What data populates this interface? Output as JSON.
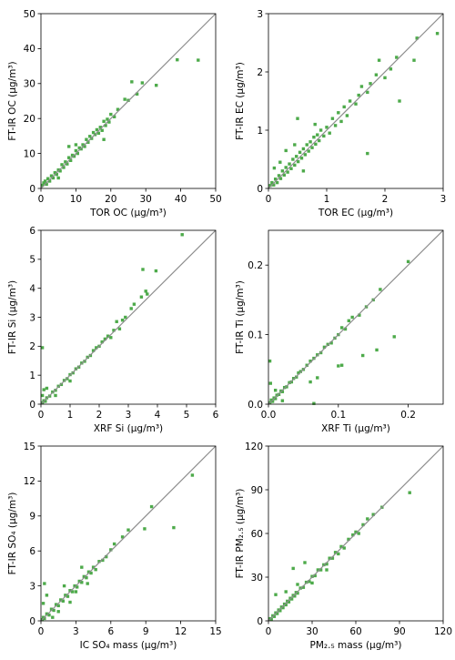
{
  "chart_data": [
    {
      "type": "scatter",
      "xlabel": "TOR OC (µg/m³)",
      "ylabel": "FT-IR OC (µg/m³)",
      "xlim": [
        0,
        50
      ],
      "ylim": [
        0,
        50
      ],
      "xticks": [
        "0",
        "10",
        "20",
        "30",
        "40",
        "50"
      ],
      "yticks": [
        "0",
        "10",
        "20",
        "30",
        "40",
        "50"
      ],
      "identity_line": true,
      "marker_color": "#4daa4a",
      "points": [
        [
          0.4,
          0.9
        ],
        [
          0.8,
          1.6
        ],
        [
          1.2,
          2.1
        ],
        [
          1.6,
          1.2
        ],
        [
          2.0,
          2.8
        ],
        [
          2.5,
          2.1
        ],
        [
          3.0,
          3.6
        ],
        [
          3.5,
          3.0
        ],
        [
          4.0,
          4.5
        ],
        [
          4.5,
          4.0
        ],
        [
          5.0,
          5.3
        ],
        [
          5.5,
          5.0
        ],
        [
          6.0,
          6.8
        ],
        [
          6.5,
          6.0
        ],
        [
          7.0,
          7.6
        ],
        [
          7.5,
          7.0
        ],
        [
          8.0,
          8.8
        ],
        [
          8.5,
          8.0
        ],
        [
          9.0,
          9.5
        ],
        [
          9.5,
          9.2
        ],
        [
          10.0,
          10.8
        ],
        [
          10.5,
          10.0
        ],
        [
          11.0,
          11.6
        ],
        [
          11.5,
          11.3
        ],
        [
          12.0,
          12.5
        ],
        [
          12.5,
          12.0
        ],
        [
          13.0,
          14.0
        ],
        [
          13.5,
          13.2
        ],
        [
          14.0,
          14.9
        ],
        [
          14.5,
          14.3
        ],
        [
          15.0,
          16.0
        ],
        [
          15.5,
          15.4
        ],
        [
          16.0,
          16.8
        ],
        [
          16.5,
          15.8
        ],
        [
          17.0,
          17.5
        ],
        [
          17.5,
          16.6
        ],
        [
          18.0,
          19.2
        ],
        [
          18.5,
          18.0
        ],
        [
          19.0,
          19.8
        ],
        [
          19.5,
          19.0
        ],
        [
          20.0,
          21.2
        ],
        [
          21.0,
          20.5
        ],
        [
          22.0,
          22.6
        ],
        [
          24.0,
          25.5
        ],
        [
          25.0,
          25.2
        ],
        [
          26.0,
          30.5
        ],
        [
          27.5,
          27.0
        ],
        [
          29.0,
          30.2
        ],
        [
          33.0,
          29.5
        ],
        [
          39.0,
          36.8
        ],
        [
          45.0,
          36.7
        ],
        [
          8.0,
          12.0
        ],
        [
          10.0,
          12.5
        ],
        [
          18.0,
          14.0
        ],
        [
          5.0,
          3.0
        ]
      ]
    },
    {
      "type": "scatter",
      "xlabel": "TOR EC (µg/m³)",
      "ylabel": "FT-IR EC (µg/m³)",
      "xlim": [
        0,
        3
      ],
      "ylim": [
        0,
        3
      ],
      "xticks": [
        "0",
        "1",
        "2",
        "3"
      ],
      "yticks": [
        "0",
        "1",
        "2",
        "3"
      ],
      "identity_line": true,
      "marker_color": "#4daa4a",
      "points": [
        [
          0.03,
          0.05
        ],
        [
          0.06,
          0.1
        ],
        [
          0.09,
          0.06
        ],
        [
          0.12,
          0.16
        ],
        [
          0.15,
          0.1
        ],
        [
          0.18,
          0.22
        ],
        [
          0.21,
          0.17
        ],
        [
          0.24,
          0.3
        ],
        [
          0.27,
          0.23
        ],
        [
          0.3,
          0.36
        ],
        [
          0.33,
          0.28
        ],
        [
          0.36,
          0.42
        ],
        [
          0.39,
          0.34
        ],
        [
          0.42,
          0.5
        ],
        [
          0.45,
          0.4
        ],
        [
          0.48,
          0.55
        ],
        [
          0.51,
          0.46
        ],
        [
          0.54,
          0.62
        ],
        [
          0.57,
          0.52
        ],
        [
          0.6,
          0.68
        ],
        [
          0.63,
          0.58
        ],
        [
          0.66,
          0.75
        ],
        [
          0.69,
          0.64
        ],
        [
          0.72,
          0.8
        ],
        [
          0.75,
          0.7
        ],
        [
          0.78,
          0.88
        ],
        [
          0.81,
          0.76
        ],
        [
          0.84,
          0.92
        ],
        [
          0.87,
          0.82
        ],
        [
          0.9,
          1.0
        ],
        [
          0.95,
          0.9
        ],
        [
          1.0,
          1.05
        ],
        [
          1.05,
          0.95
        ],
        [
          1.1,
          1.2
        ],
        [
          1.15,
          1.08
        ],
        [
          1.2,
          1.3
        ],
        [
          1.25,
          1.15
        ],
        [
          1.3,
          1.4
        ],
        [
          1.35,
          1.25
        ],
        [
          1.4,
          1.5
        ],
        [
          1.5,
          1.45
        ],
        [
          1.55,
          1.6
        ],
        [
          1.6,
          1.75
        ],
        [
          1.7,
          1.65
        ],
        [
          1.75,
          1.8
        ],
        [
          1.85,
          1.95
        ],
        [
          1.9,
          2.2
        ],
        [
          2.0,
          1.9
        ],
        [
          2.1,
          2.05
        ],
        [
          2.2,
          2.25
        ],
        [
          2.25,
          1.5
        ],
        [
          2.5,
          2.2
        ],
        [
          2.55,
          2.58
        ],
        [
          2.9,
          2.66
        ],
        [
          0.5,
          1.2
        ],
        [
          0.3,
          0.65
        ],
        [
          1.7,
          0.6
        ],
        [
          0.2,
          0.45
        ],
        [
          0.1,
          0.35
        ],
        [
          0.6,
          0.3
        ],
        [
          0.45,
          0.75
        ],
        [
          0.8,
          1.1
        ]
      ]
    },
    {
      "type": "scatter",
      "xlabel": "XRF Si (µg/m³)",
      "ylabel": "FT-IR Si (µg/m³)",
      "xlim": [
        0,
        6
      ],
      "ylim": [
        0,
        6
      ],
      "xticks": [
        "0",
        "1",
        "2",
        "3",
        "4",
        "5",
        "6"
      ],
      "yticks": [
        "0",
        "1",
        "2",
        "3",
        "4",
        "5",
        "6"
      ],
      "identity_line": true,
      "marker_color": "#4daa4a",
      "points": [
        [
          0.05,
          0.05
        ],
        [
          0.1,
          0.12
        ],
        [
          0.15,
          0.1
        ],
        [
          0.2,
          0.22
        ],
        [
          0.3,
          0.28
        ],
        [
          0.4,
          0.42
        ],
        [
          0.5,
          0.48
        ],
        [
          0.6,
          0.62
        ],
        [
          0.7,
          0.68
        ],
        [
          0.8,
          0.82
        ],
        [
          0.9,
          0.88
        ],
        [
          1.0,
          1.02
        ],
        [
          1.1,
          1.08
        ],
        [
          1.2,
          1.22
        ],
        [
          1.3,
          1.28
        ],
        [
          1.4,
          1.42
        ],
        [
          1.5,
          1.48
        ],
        [
          1.6,
          1.62
        ],
        [
          1.7,
          1.68
        ],
        [
          1.8,
          1.85
        ],
        [
          1.9,
          1.95
        ],
        [
          2.0,
          2.0
        ],
        [
          2.1,
          2.15
        ],
        [
          2.2,
          2.25
        ],
        [
          2.3,
          2.35
        ],
        [
          2.4,
          2.3
        ],
        [
          2.5,
          2.55
        ],
        [
          2.6,
          2.85
        ],
        [
          2.7,
          2.6
        ],
        [
          2.8,
          2.9
        ],
        [
          2.9,
          3.0
        ],
        [
          3.1,
          3.3
        ],
        [
          3.2,
          3.45
        ],
        [
          3.45,
          3.7
        ],
        [
          3.5,
          4.65
        ],
        [
          3.6,
          3.9
        ],
        [
          3.65,
          3.8
        ],
        [
          3.95,
          4.6
        ],
        [
          4.85,
          5.85
        ],
        [
          0.05,
          1.95
        ],
        [
          0.1,
          0.5
        ],
        [
          0.2,
          0.55
        ],
        [
          0.5,
          0.3
        ],
        [
          1.0,
          0.8
        ],
        [
          0.05,
          0.3
        ]
      ]
    },
    {
      "type": "scatter",
      "xlabel": "XRF Ti (µg/m³)",
      "ylabel": "FT-IR Ti (µg/m³)",
      "xlim": [
        0,
        0.25
      ],
      "ylim": [
        0,
        0.25
      ],
      "xticks": [
        "0.0",
        "0.1",
        "0.2"
      ],
      "yticks": [
        "0.0",
        "0.1",
        "0.2"
      ],
      "identity_line": true,
      "marker_color": "#4daa4a",
      "points": [
        [
          0.002,
          0.002
        ],
        [
          0.004,
          0.006
        ],
        [
          0.006,
          0.004
        ],
        [
          0.008,
          0.009
        ],
        [
          0.01,
          0.008
        ],
        [
          0.012,
          0.013
        ],
        [
          0.015,
          0.014
        ],
        [
          0.018,
          0.019
        ],
        [
          0.02,
          0.018
        ],
        [
          0.023,
          0.024
        ],
        [
          0.026,
          0.025
        ],
        [
          0.03,
          0.031
        ],
        [
          0.033,
          0.032
        ],
        [
          0.036,
          0.037
        ],
        [
          0.04,
          0.039
        ],
        [
          0.043,
          0.045
        ],
        [
          0.046,
          0.047
        ],
        [
          0.05,
          0.05
        ],
        [
          0.055,
          0.056
        ],
        [
          0.06,
          0.062
        ],
        [
          0.065,
          0.066
        ],
        [
          0.07,
          0.071
        ],
        [
          0.075,
          0.074
        ],
        [
          0.08,
          0.082
        ],
        [
          0.085,
          0.086
        ],
        [
          0.09,
          0.088
        ],
        [
          0.095,
          0.095
        ],
        [
          0.1,
          0.1
        ],
        [
          0.105,
          0.11
        ],
        [
          0.11,
          0.108
        ],
        [
          0.115,
          0.12
        ],
        [
          0.12,
          0.125
        ],
        [
          0.13,
          0.128
        ],
        [
          0.135,
          0.07
        ],
        [
          0.14,
          0.14
        ],
        [
          0.15,
          0.15
        ],
        [
          0.155,
          0.078
        ],
        [
          0.16,
          0.165
        ],
        [
          0.18,
          0.097
        ],
        [
          0.2,
          0.205
        ],
        [
          0.1,
          0.055
        ],
        [
          0.105,
          0.056
        ],
        [
          0.07,
          0.038
        ],
        [
          0.06,
          0.032
        ],
        [
          0.065,
          0.001
        ],
        [
          0.002,
          0.062
        ],
        [
          0.003,
          0.03
        ],
        [
          0.01,
          0.02
        ],
        [
          0.02,
          0.005
        ]
      ]
    },
    {
      "type": "scatter",
      "xlabel": "IC SO₄ mass (µg/m³)",
      "ylabel": "FT-IR  SO₄ (µg/m³)",
      "xlim": [
        0,
        15
      ],
      "ylim": [
        0,
        15
      ],
      "xticks": [
        "0",
        "3",
        "6",
        "9",
        "12",
        "15"
      ],
      "yticks": [
        "0",
        "3",
        "6",
        "9",
        "12",
        "15"
      ],
      "identity_line": true,
      "marker_color": "#4daa4a",
      "points": [
        [
          0.1,
          0.1
        ],
        [
          0.2,
          0.3
        ],
        [
          0.3,
          0.2
        ],
        [
          0.5,
          0.6
        ],
        [
          0.7,
          0.5
        ],
        [
          0.9,
          1.0
        ],
        [
          1.1,
          0.9
        ],
        [
          1.3,
          1.4
        ],
        [
          1.5,
          1.3
        ],
        [
          1.7,
          1.8
        ],
        [
          1.9,
          1.7
        ],
        [
          2.1,
          2.2
        ],
        [
          2.3,
          2.1
        ],
        [
          2.5,
          2.6
        ],
        [
          2.7,
          2.5
        ],
        [
          2.9,
          3.0
        ],
        [
          3.1,
          2.9
        ],
        [
          3.3,
          3.4
        ],
        [
          3.5,
          3.3
        ],
        [
          3.7,
          3.8
        ],
        [
          3.9,
          3.7
        ],
        [
          4.1,
          4.2
        ],
        [
          4.3,
          4.1
        ],
        [
          4.5,
          4.6
        ],
        [
          4.7,
          4.4
        ],
        [
          5.0,
          5.1
        ],
        [
          5.3,
          5.2
        ],
        [
          5.6,
          5.5
        ],
        [
          6.0,
          6.1
        ],
        [
          6.3,
          6.6
        ],
        [
          7.0,
          7.2
        ],
        [
          7.5,
          7.8
        ],
        [
          9.5,
          9.8
        ],
        [
          11.4,
          8.0
        ],
        [
          13.0,
          12.5
        ],
        [
          0.3,
          3.2
        ],
        [
          0.5,
          2.2
        ],
        [
          0.2,
          1.5
        ],
        [
          1.0,
          0.3
        ],
        [
          1.5,
          0.8
        ],
        [
          2.0,
          3.0
        ],
        [
          3.0,
          2.5
        ],
        [
          2.5,
          1.6
        ],
        [
          3.5,
          4.6
        ],
        [
          4.0,
          3.2
        ],
        [
          8.9,
          7.9
        ]
      ]
    },
    {
      "type": "scatter",
      "xlabel": "PM₂.₅ mass (µg/m³)",
      "ylabel": "FT-IR  PM₂.₅ (µg/m³)",
      "xlim": [
        0,
        120
      ],
      "ylim": [
        0,
        120
      ],
      "xticks": [
        "0",
        "30",
        "60",
        "90",
        "120"
      ],
      "yticks": [
        "0",
        "30",
        "60",
        "90",
        "120"
      ],
      "identity_line": true,
      "marker_color": "#4daa4a",
      "points": [
        [
          1,
          1.5
        ],
        [
          2,
          1
        ],
        [
          3,
          3.5
        ],
        [
          4,
          3
        ],
        [
          5,
          5.5
        ],
        [
          6,
          5
        ],
        [
          7,
          7.5
        ],
        [
          8,
          7
        ],
        [
          9,
          9.5
        ],
        [
          10,
          9
        ],
        [
          11,
          11.5
        ],
        [
          12,
          11
        ],
        [
          13,
          13.5
        ],
        [
          14,
          13
        ],
        [
          15,
          15.5
        ],
        [
          16,
          15
        ],
        [
          17,
          17.5
        ],
        [
          18,
          17
        ],
        [
          19,
          19.5
        ],
        [
          20,
          19
        ],
        [
          22,
          22.5
        ],
        [
          24,
          23
        ],
        [
          26,
          26.5
        ],
        [
          28,
          27
        ],
        [
          30,
          30.5
        ],
        [
          32,
          31
        ],
        [
          34,
          35
        ],
        [
          36,
          35
        ],
        [
          38,
          38.5
        ],
        [
          40,
          39
        ],
        [
          42,
          43
        ],
        [
          44,
          43
        ],
        [
          46,
          47
        ],
        [
          48,
          46
        ],
        [
          50,
          51
        ],
        [
          52,
          50
        ],
        [
          55,
          56
        ],
        [
          58,
          59
        ],
        [
          60,
          61
        ],
        [
          62,
          60
        ],
        [
          65,
          66
        ],
        [
          68,
          70
        ],
        [
          72,
          73
        ],
        [
          78,
          78
        ],
        [
          97,
          88
        ],
        [
          17,
          36
        ],
        [
          25,
          40
        ],
        [
          5,
          18
        ],
        [
          30,
          26
        ],
        [
          20,
          25
        ],
        [
          12,
          20
        ],
        [
          40,
          35
        ]
      ]
    }
  ]
}
